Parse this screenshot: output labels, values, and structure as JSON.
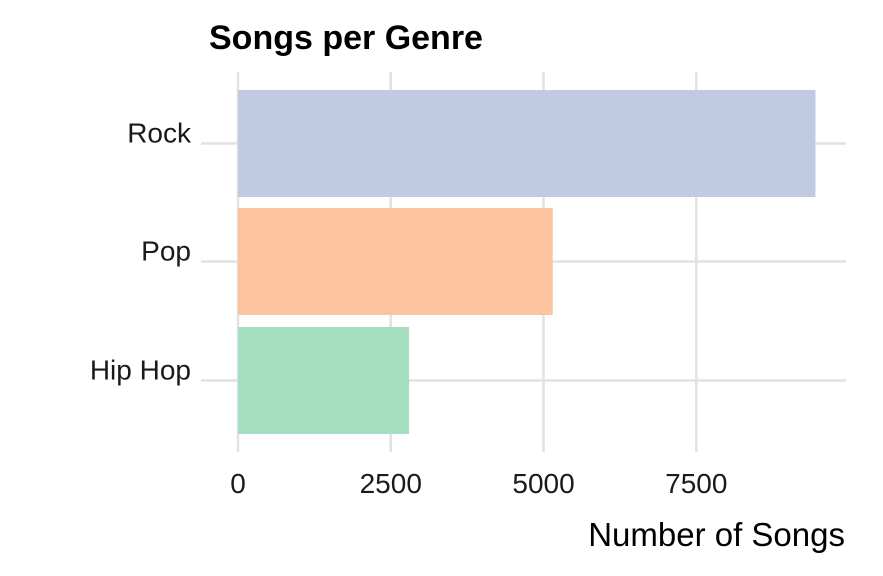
{
  "chart_data": {
    "type": "bar",
    "orientation": "horizontal",
    "title": "Songs per Genre",
    "xlabel": "Number of Songs",
    "ylabel": "",
    "categories": [
      "Rock",
      "Pop",
      "Hip Hop"
    ],
    "values": [
      9450,
      5150,
      2800
    ],
    "colors": [
      "#c0cae3",
      "#fbc39e",
      "#a6dec2"
    ],
    "xlim": [
      0,
      9950
    ],
    "x_ticks": [
      0,
      2500,
      5000,
      7500
    ],
    "x_tick_labels": [
      "0",
      "2500",
      "5000",
      "7500"
    ],
    "grid": true,
    "legend": "none"
  }
}
